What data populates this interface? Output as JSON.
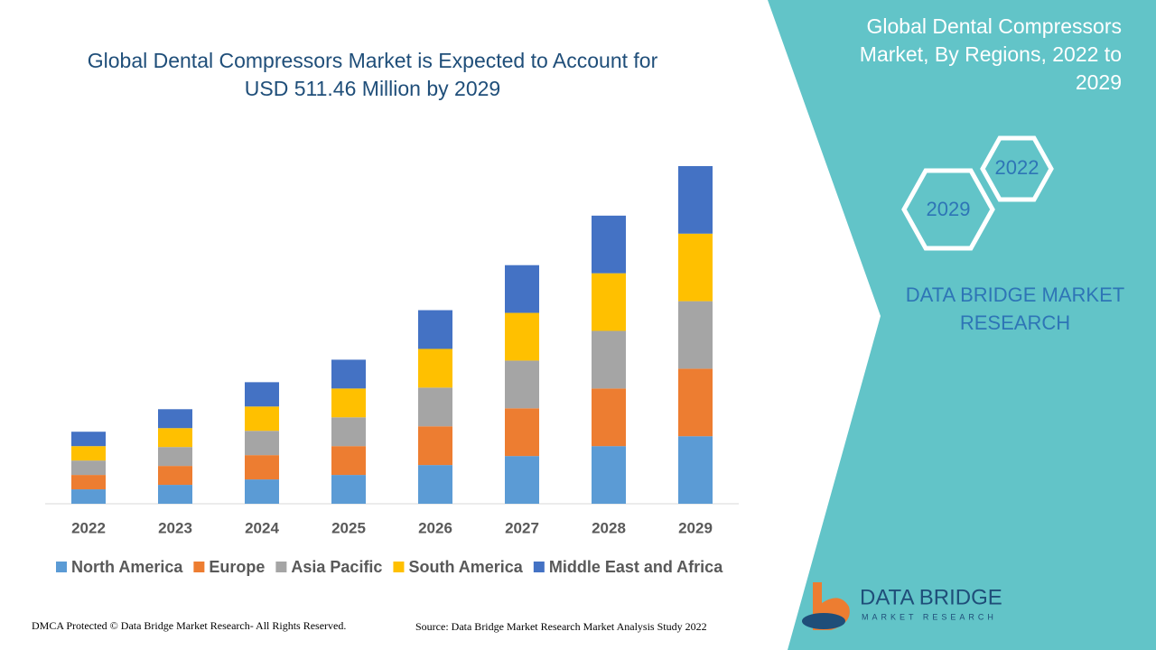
{
  "chart_data": {
    "type": "stacked-bar",
    "title": "Global Dental Compressors Market is Expected to Account for USD 511.46 Million by 2029",
    "categories": [
      "2022",
      "2023",
      "2024",
      "2025",
      "2026",
      "2027",
      "2028",
      "2029"
    ],
    "series": [
      {
        "name": "North America",
        "color": "#5b9bd5",
        "values": [
          16,
          21,
          27,
          32,
          43,
          53,
          64,
          75
        ]
      },
      {
        "name": "Europe",
        "color": "#ed7d31",
        "values": [
          16,
          21,
          27,
          32,
          43,
          53,
          64,
          75
        ]
      },
      {
        "name": "Asia Pacific",
        "color": "#a5a5a5",
        "values": [
          16,
          21,
          27,
          32,
          43,
          53,
          64,
          75
        ]
      },
      {
        "name": "South America",
        "color": "#ffc000",
        "values": [
          16,
          21,
          27,
          32,
          43,
          53,
          64,
          75
        ]
      },
      {
        "name": "Middle East and Africa",
        "color": "#4472c4",
        "values": [
          16,
          21,
          27,
          32,
          43,
          53,
          64,
          75
        ]
      }
    ]
  },
  "panel": {
    "title": "Global Dental Compressors Market, By Regions, 2022 to 2029",
    "hexagons": [
      "2022",
      "2029"
    ],
    "brand": "DATA BRIDGE MARKET RESEARCH"
  },
  "logo": {
    "name": "DATA BRIDGE",
    "tagline": "MARKET RESEARCH"
  },
  "footer": {
    "copyright": "DMCA Protected © Data Bridge Market Research- All Rights Reserved.",
    "source": "Source: Data Bridge Market Research Market Analysis Study 2022"
  }
}
